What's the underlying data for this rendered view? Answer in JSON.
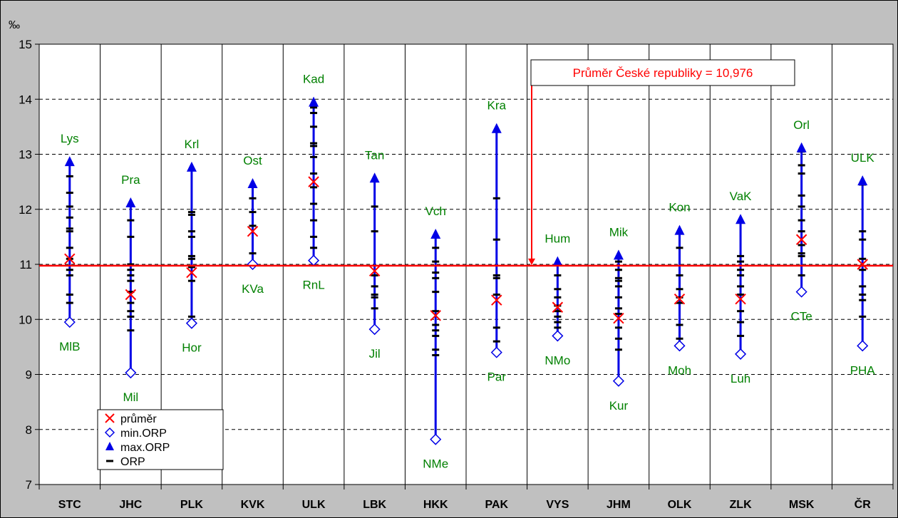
{
  "chart_data": {
    "type": "scatter",
    "unit_label": "‰",
    "categories": [
      "STC",
      "JHC",
      "PLK",
      "KVK",
      "ULK",
      "LBK",
      "HKK",
      "PAK",
      "VYS",
      "JHM",
      "OLK",
      "ZLK",
      "MSK",
      "ČR"
    ],
    "ylim": [
      7,
      15
    ],
    "yticks": [
      "7",
      "8",
      "9",
      "10",
      "11",
      "12",
      "13",
      "14",
      "15"
    ],
    "grid": true,
    "average_line": {
      "value": 10.976,
      "label": "Průměr České republiky = 10,976",
      "color": "#ff0000"
    },
    "colors": {
      "range": "#0000e6",
      "max": "#0000e6",
      "min": "#0000e6",
      "mean": "#ff0000",
      "orp": "#000000",
      "labels": "#008000",
      "plot_bg": "#ffffff",
      "frame_bg": "#c0c0c0"
    },
    "legend": {
      "placement": "bottom-left",
      "entries": [
        {
          "marker": "x",
          "label": "průměr"
        },
        {
          "marker": "diamond",
          "label": "min.ORP"
        },
        {
          "marker": "triangle",
          "label": "max.ORP"
        },
        {
          "marker": "dash",
          "label": "ORP"
        }
      ]
    },
    "regions": [
      {
        "code": "STC",
        "mean": 11.1,
        "min": 9.95,
        "max": 12.85,
        "min_label": "MlB",
        "max_label": "Lys",
        "orp": [
          10.3,
          10.45,
          10.8,
          10.9,
          11.1,
          11.3,
          11.6,
          11.65,
          11.85,
          12.05,
          12.3,
          12.6
        ]
      },
      {
        "code": "JHC",
        "mean": 10.45,
        "min": 9.03,
        "max": 12.1,
        "min_label": "Mil",
        "max_label": "Pra",
        "orp": [
          9.8,
          10.05,
          10.15,
          10.3,
          10.5,
          10.7,
          10.8,
          10.9,
          11.0,
          11.5,
          11.8
        ]
      },
      {
        "code": "PLK",
        "mean": 10.85,
        "min": 9.93,
        "max": 12.75,
        "min_label": "Hor",
        "max_label": "Krl",
        "orp": [
          10.05,
          10.7,
          10.95,
          11.1,
          11.15,
          11.5,
          11.6,
          11.9,
          11.95
        ]
      },
      {
        "code": "KVK",
        "mean": 11.6,
        "min": 11.0,
        "max": 12.45,
        "min_label": "KVa",
        "max_label": "Ost",
        "orp": [
          11.2,
          11.7,
          11.95,
          12.2
        ]
      },
      {
        "code": "ULK",
        "mean": 12.5,
        "min": 11.07,
        "max": 13.93,
        "min_label": "RnL",
        "max_label": "Kad",
        "orp": [
          11.3,
          11.5,
          11.8,
          12.1,
          12.4,
          12.65,
          12.95,
          13.15,
          13.2,
          13.5,
          13.75,
          13.85
        ]
      },
      {
        "code": "LBK",
        "mean": 10.88,
        "min": 9.82,
        "max": 12.55,
        "min_label": "Jil",
        "max_label": "Tan",
        "orp": [
          10.2,
          10.4,
          10.45,
          10.6,
          10.8,
          11.6,
          12.05
        ]
      },
      {
        "code": "HKK",
        "mean": 10.07,
        "min": 7.82,
        "max": 11.53,
        "min_label": "NMe",
        "max_label": "Vch",
        "orp": [
          9.35,
          9.45,
          9.7,
          9.8,
          9.9,
          10.15,
          10.5,
          10.75,
          10.85,
          11.05,
          11.3
        ]
      },
      {
        "code": "PAK",
        "mean": 10.35,
        "min": 9.4,
        "max": 13.45,
        "min_label": "Par",
        "max_label": "Kra",
        "orp": [
          9.6,
          9.85,
          10.45,
          10.75,
          10.8,
          11.45,
          12.2
        ]
      },
      {
        "code": "VYS",
        "mean": 10.22,
        "min": 9.7,
        "max": 11.03,
        "min_label": "NMo",
        "max_label": "Hum",
        "orp": [
          9.85,
          9.95,
          10.05,
          10.15,
          10.25,
          10.4,
          10.55,
          10.8
        ]
      },
      {
        "code": "JHM",
        "mean": 10.02,
        "min": 8.88,
        "max": 11.15,
        "min_label": "Kur",
        "max_label": "Mik",
        "orp": [
          9.45,
          9.65,
          9.85,
          10.1,
          10.2,
          10.4,
          10.6,
          10.7,
          10.75,
          10.9,
          11.05
        ]
      },
      {
        "code": "OLK",
        "mean": 10.37,
        "min": 9.52,
        "max": 11.6,
        "min_label": "Moh",
        "max_label": "Kon",
        "orp": [
          9.65,
          9.9,
          10.3,
          10.4,
          10.55,
          10.8,
          11.3
        ]
      },
      {
        "code": "ZLK",
        "mean": 10.37,
        "min": 9.37,
        "max": 11.8,
        "min_label": "Luh",
        "max_label": "VaK",
        "orp": [
          9.7,
          9.95,
          10.15,
          10.45,
          10.6,
          10.8,
          10.9,
          11.05,
          11.15
        ]
      },
      {
        "code": "MSK",
        "mean": 11.45,
        "min": 10.5,
        "max": 13.1,
        "min_label": "CTe",
        "max_label": "Orl",
        "orp": [
          10.8,
          11.15,
          11.2,
          11.35,
          11.6,
          11.8,
          12.05,
          12.25,
          12.65,
          12.8,
          13.05
        ]
      },
      {
        "code": "ČR",
        "mean": 11.0,
        "min": 9.52,
        "max": 12.5,
        "min_label": "PHA",
        "max_label": "ULK",
        "orp": [
          10.05,
          10.35,
          10.45,
          10.6,
          10.9,
          11.1,
          11.45,
          11.6,
          12.45
        ]
      }
    ]
  }
}
